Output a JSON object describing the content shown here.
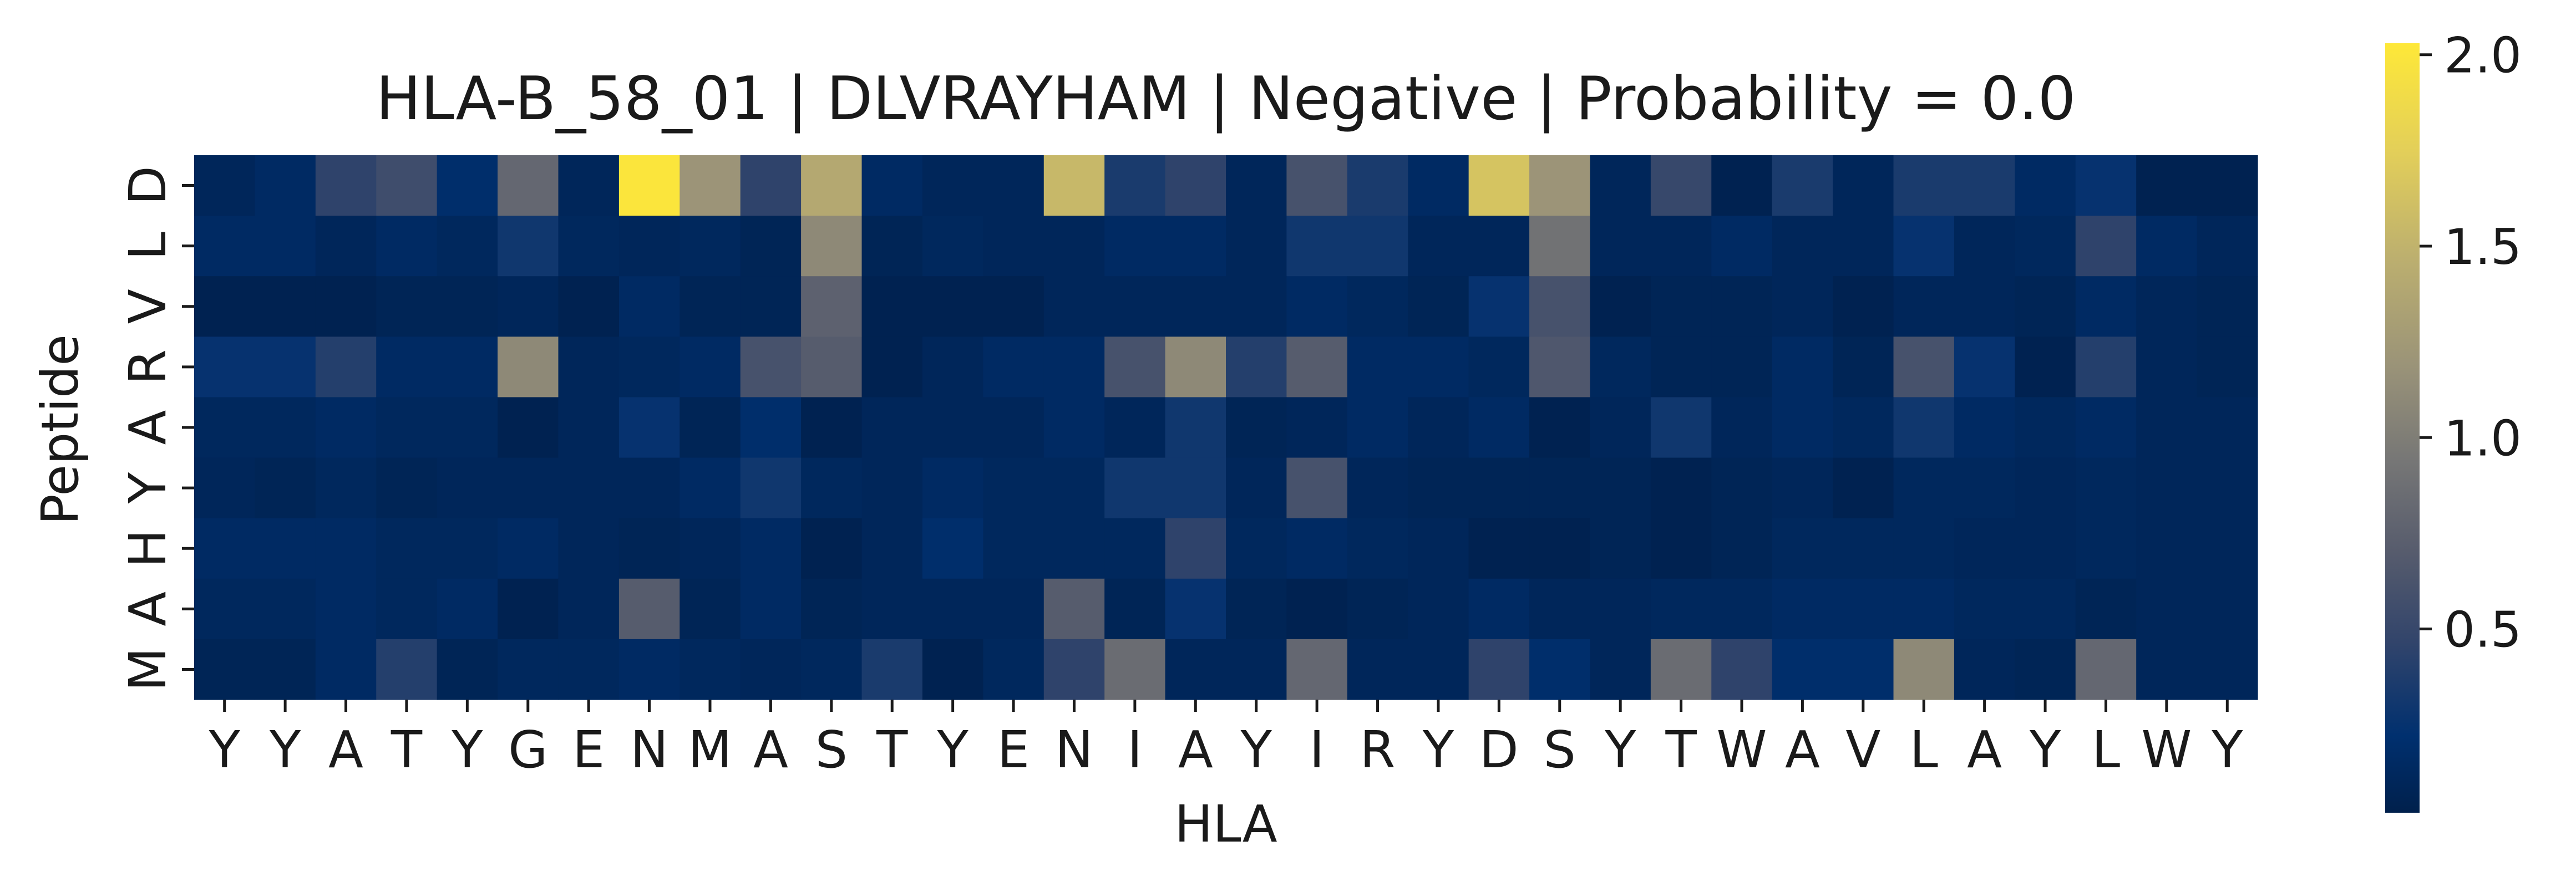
{
  "chart_data": {
    "type": "heatmap",
    "title": "HLA-B_58_01 | DLVRAYHAM | Negative | Probability = 0.0",
    "xlabel": "HLA",
    "ylabel": "Peptide",
    "x_categories": [
      "Y",
      "Y",
      "A",
      "T",
      "Y",
      "G",
      "E",
      "N",
      "M",
      "A",
      "S",
      "T",
      "Y",
      "E",
      "N",
      "I",
      "A",
      "Y",
      "I",
      "R",
      "Y",
      "D",
      "S",
      "Y",
      "T",
      "W",
      "A",
      "V",
      "L",
      "A",
      "Y",
      "L",
      "W",
      "Y"
    ],
    "y_categories": [
      "D",
      "L",
      "V",
      "R",
      "A",
      "Y",
      "H",
      "A",
      "M"
    ],
    "values": [
      [
        0.1,
        0.15,
        0.45,
        0.55,
        0.2,
        0.8,
        0.1,
        2.0,
        1.2,
        0.45,
        1.4,
        0.15,
        0.1,
        0.1,
        1.55,
        0.35,
        0.45,
        0.1,
        0.6,
        0.35,
        0.15,
        1.65,
        1.2,
        0.1,
        0.5,
        0.05,
        0.35,
        0.1,
        0.35,
        0.35,
        0.15,
        0.25,
        0.05,
        0.05
      ],
      [
        0.15,
        0.15,
        0.1,
        0.15,
        0.12,
        0.3,
        0.12,
        0.1,
        0.12,
        0.08,
        1.1,
        0.08,
        0.12,
        0.1,
        0.1,
        0.15,
        0.15,
        0.1,
        0.3,
        0.3,
        0.1,
        0.1,
        0.9,
        0.1,
        0.1,
        0.15,
        0.1,
        0.1,
        0.25,
        0.1,
        0.12,
        0.45,
        0.15,
        0.1
      ],
      [
        0.05,
        0.05,
        0.05,
        0.08,
        0.08,
        0.1,
        0.05,
        0.15,
        0.08,
        0.08,
        0.75,
        0.05,
        0.05,
        0.05,
        0.1,
        0.1,
        0.1,
        0.1,
        0.15,
        0.12,
        0.08,
        0.25,
        0.6,
        0.05,
        0.08,
        0.08,
        0.1,
        0.05,
        0.1,
        0.1,
        0.08,
        0.15,
        0.1,
        0.08
      ],
      [
        0.25,
        0.25,
        0.4,
        0.15,
        0.15,
        1.1,
        0.1,
        0.12,
        0.15,
        0.6,
        0.7,
        0.05,
        0.1,
        0.15,
        0.15,
        0.6,
        1.1,
        0.4,
        0.7,
        0.15,
        0.15,
        0.12,
        0.65,
        0.12,
        0.08,
        0.08,
        0.15,
        0.08,
        0.6,
        0.25,
        0.05,
        0.4,
        0.1,
        0.08
      ],
      [
        0.12,
        0.12,
        0.15,
        0.12,
        0.12,
        0.05,
        0.1,
        0.25,
        0.08,
        0.2,
        0.05,
        0.1,
        0.1,
        0.1,
        0.15,
        0.1,
        0.3,
        0.08,
        0.1,
        0.15,
        0.1,
        0.15,
        0.05,
        0.1,
        0.3,
        0.1,
        0.15,
        0.12,
        0.3,
        0.15,
        0.12,
        0.15,
        0.1,
        0.1
      ],
      [
        0.1,
        0.08,
        0.12,
        0.08,
        0.1,
        0.1,
        0.1,
        0.1,
        0.15,
        0.3,
        0.12,
        0.1,
        0.15,
        0.12,
        0.12,
        0.3,
        0.3,
        0.1,
        0.6,
        0.1,
        0.08,
        0.08,
        0.08,
        0.08,
        0.05,
        0.08,
        0.1,
        0.05,
        0.12,
        0.12,
        0.1,
        0.12,
        0.1,
        0.1
      ],
      [
        0.15,
        0.15,
        0.15,
        0.12,
        0.12,
        0.15,
        0.1,
        0.08,
        0.1,
        0.15,
        0.05,
        0.1,
        0.2,
        0.12,
        0.12,
        0.12,
        0.45,
        0.12,
        0.15,
        0.12,
        0.1,
        0.05,
        0.05,
        0.08,
        0.05,
        0.08,
        0.12,
        0.12,
        0.12,
        0.1,
        0.1,
        0.12,
        0.1,
        0.1
      ],
      [
        0.12,
        0.12,
        0.15,
        0.12,
        0.15,
        0.05,
        0.1,
        0.7,
        0.08,
        0.15,
        0.08,
        0.1,
        0.1,
        0.1,
        0.7,
        0.08,
        0.25,
        0.08,
        0.05,
        0.08,
        0.1,
        0.15,
        0.1,
        0.1,
        0.12,
        0.12,
        0.15,
        0.15,
        0.15,
        0.12,
        0.12,
        0.08,
        0.1,
        0.1
      ],
      [
        0.08,
        0.08,
        0.15,
        0.4,
        0.08,
        0.12,
        0.12,
        0.15,
        0.12,
        0.1,
        0.12,
        0.35,
        0.05,
        0.12,
        0.45,
        0.85,
        0.1,
        0.1,
        0.8,
        0.1,
        0.1,
        0.45,
        0.2,
        0.1,
        0.85,
        0.45,
        0.2,
        0.2,
        1.1,
        0.1,
        0.08,
        0.8,
        0.1,
        0.1
      ]
    ],
    "vmin": 0.02,
    "vmax": 2.03,
    "colormap": "cividis",
    "colorbar_ticks": [
      "0.5",
      "1.0",
      "1.5",
      "2.0"
    ],
    "colorbar_tick_values": [
      0.5,
      1.0,
      1.5,
      2.0
    ],
    "grid": false
  }
}
